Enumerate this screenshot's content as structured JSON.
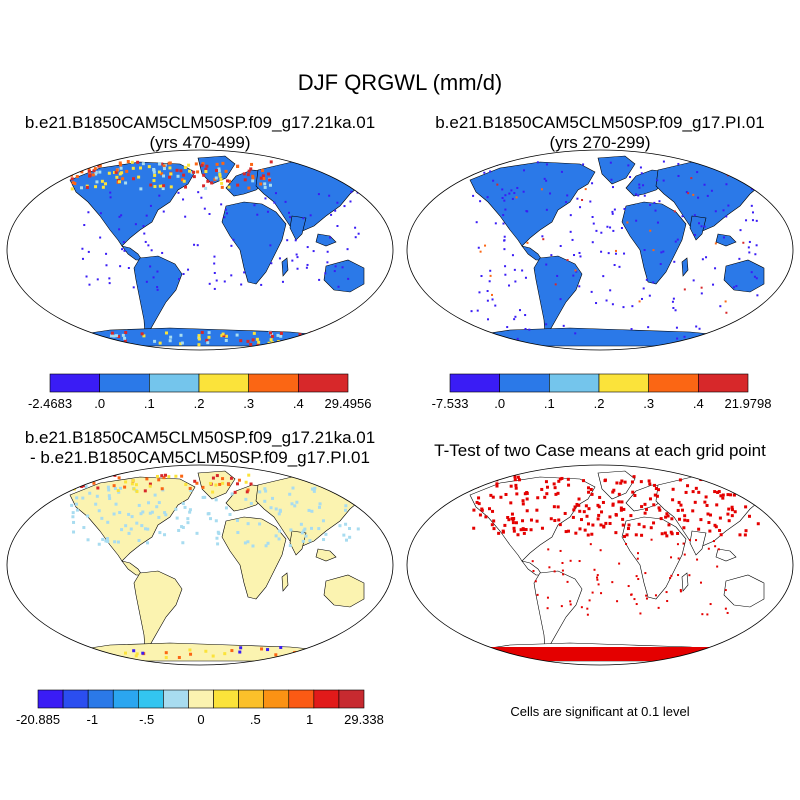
{
  "main_title": "DJF QRGWL (mm/d)",
  "panels": [
    {
      "id": "case1",
      "title_line1": "b.e21.B1850CAM5CLM50SP.f09_g17.21ka.01",
      "title_line2": "(yrs 470-499)",
      "colorbar": {
        "colors": [
          "#3a1cf5",
          "#2b79e8",
          "#74c5ec",
          "#fbe33a",
          "#fb6614",
          "#d7282a"
        ],
        "labels": [
          "-2.4683",
          ".0",
          ".1",
          ".2",
          ".3",
          ".4",
          "29.4956"
        ]
      }
    },
    {
      "id": "case2",
      "title_line1": "b.e21.B1850CAM5CLM50SP.f09_g17.PI.01",
      "title_line2": "(yrs 270-299)",
      "colorbar": {
        "colors": [
          "#3a1cf5",
          "#2b79e8",
          "#74c5ec",
          "#fbe33a",
          "#fb6614",
          "#d7282a"
        ],
        "labels": [
          "-7.533",
          ".0",
          ".1",
          ".2",
          ".3",
          ".4",
          "21.9798"
        ]
      }
    },
    {
      "id": "diff",
      "title_line1": "b.e21.B1850CAM5CLM50SP.f09_g17.21ka.01",
      "title_line2": "- b.e21.B1850CAM5CLM50SP.f09_g17.PI.01",
      "colorbar": {
        "colors": [
          "#3a1cf5",
          "#2b4ef0",
          "#2b79e8",
          "#2ba6f0",
          "#33c5f0",
          "#a8dcf0",
          "#fbf3b0",
          "#fbe33a",
          "#fbc02a",
          "#fb9214",
          "#fb5a14",
          "#e11a1a",
          "#c72a30"
        ],
        "labels": [
          "-20.885",
          "-1",
          "-.5",
          "0",
          ".5",
          "1",
          "29.338"
        ]
      },
      "land_fill": "#fbf3b0"
    },
    {
      "id": "ttest",
      "title_line1": "T-Test of two Case means at each grid point",
      "note": "Cells are significant at 0.1 level",
      "land_fill": "#ffffff",
      "sig_color": "#e40000"
    }
  ],
  "map_colors": {
    "base_blue": "#2b79e8",
    "light_blue": "#a8dcf0",
    "red": "#d7282a",
    "orange": "#fb6614",
    "yellow": "#fbe33a",
    "purple": "#3a1cf5"
  }
}
